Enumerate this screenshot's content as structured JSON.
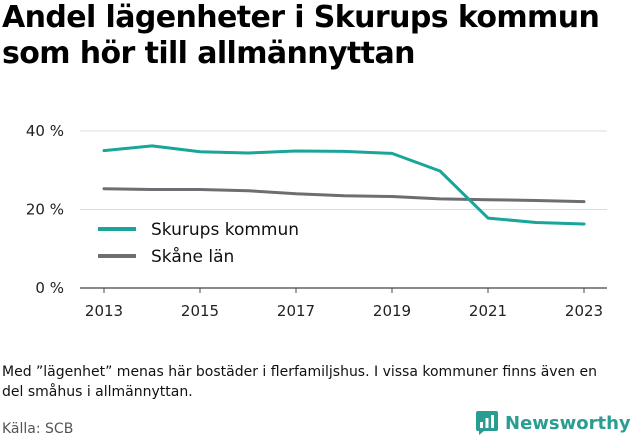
{
  "title": "Andel lägenheter i Skurups kommun som hör till allmännyttan",
  "note": "Med ”lägenhet” menas här bostäder i flerfamiljshus. I vissa kommuner finns även en del småhus i allmännyttan.",
  "source": "Källa: SCB",
  "brand": {
    "name": "Newsworthy",
    "icon": "newsworthy-logo-icon"
  },
  "colors": {
    "skurup": "#1aa59a",
    "skane": "#6e6e72",
    "grid": "#dcdcdc",
    "axis": "#444444"
  },
  "chart_data": {
    "type": "line",
    "x": [
      2013,
      2014,
      2015,
      2016,
      2017,
      2018,
      2019,
      2020,
      2021,
      2022,
      2023
    ],
    "x_ticks": [
      "2013",
      "2015",
      "2017",
      "2019",
      "2021",
      "2023"
    ],
    "y_ticks": [
      "0 %",
      "20 %",
      "40 %"
    ],
    "ylim": [
      0,
      40
    ],
    "grid": true,
    "legend_position": "middle-left",
    "series": [
      {
        "name": "Skurups kommun",
        "values": [
          35.0,
          36.2,
          34.7,
          34.4,
          34.9,
          34.8,
          34.3,
          29.8,
          17.8,
          16.7,
          16.3
        ]
      },
      {
        "name": "Skåne län",
        "values": [
          25.3,
          25.1,
          25.1,
          24.8,
          24.0,
          23.5,
          23.3,
          22.7,
          22.5,
          22.3,
          22.0
        ]
      }
    ]
  }
}
